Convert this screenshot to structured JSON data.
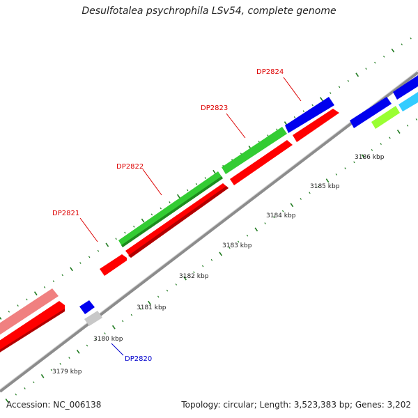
{
  "title": "Desulfotalea psychrophila LSv54, complete genome",
  "footer": {
    "accession": "Accession: NC_006138",
    "summary": "Topology: circular; Length: 3,523,383 bp; Genes: 3,202"
  },
  "colors": {
    "backbone": "#8c8c8c",
    "tick": "#1f7a1f",
    "forward_red": "#ff0000",
    "green": "#33cc33",
    "blue": "#0000ee",
    "light_red": "#f08080",
    "grey": "#c8c8c8",
    "lime": "#99ff33",
    "cyan": "#33ccff",
    "label_red": "#dd0000",
    "label_blue": "#0000cc"
  },
  "scale_labels": [
    "3179 kbp",
    "3180 kbp",
    "3181 kbp",
    "3182 kbp",
    "3183 kbp",
    "3184 kbp",
    "3185 kbp",
    "3186 kbp"
  ],
  "gene_labels": [
    {
      "text": "DP2820",
      "color": "blue"
    },
    {
      "text": "DP2821",
      "color": "red"
    },
    {
      "text": "DP2822",
      "color": "red"
    },
    {
      "text": "DP2823",
      "color": "red"
    },
    {
      "text": "DP2824",
      "color": "red"
    }
  ]
}
